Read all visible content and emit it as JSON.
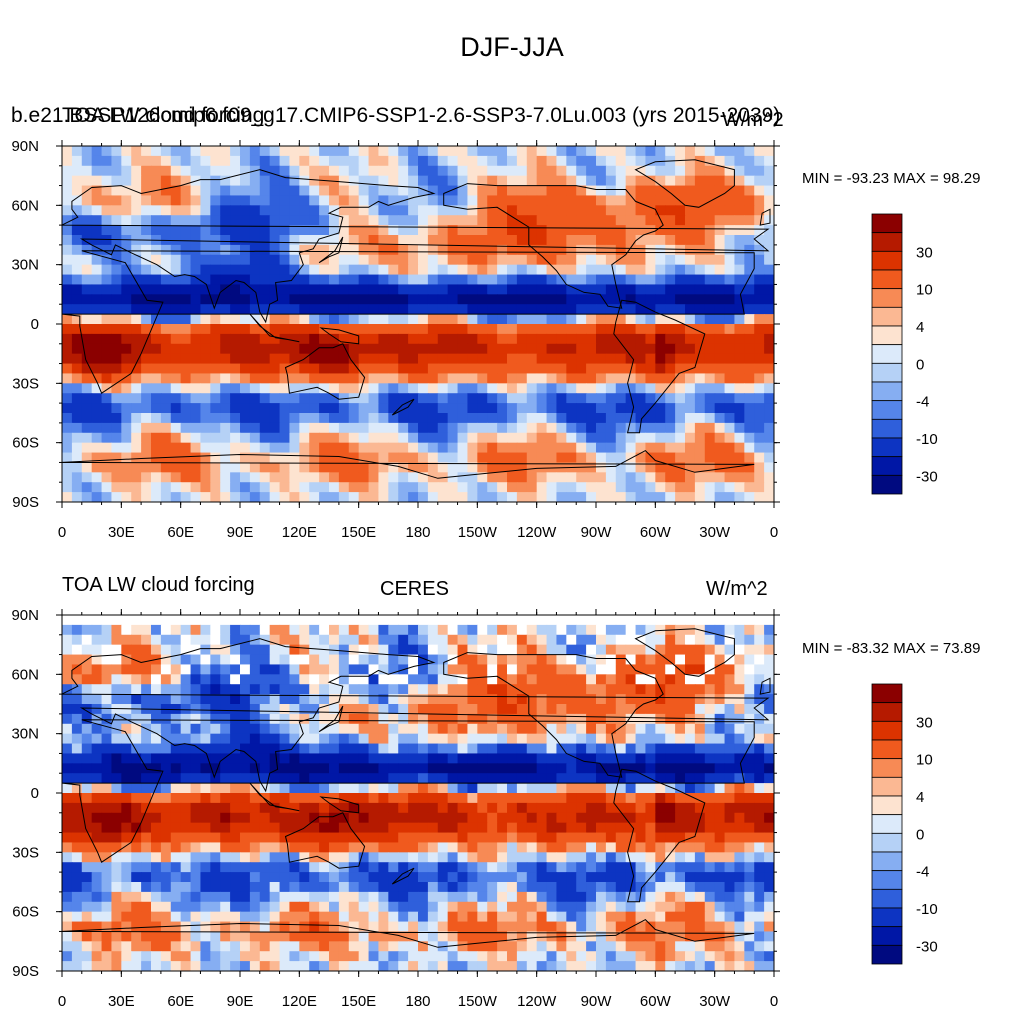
{
  "figure_title": "DJF-JJA",
  "colorbar_levels": [
    "30",
    "10",
    "4",
    "0",
    "-4",
    "-10",
    "-30"
  ],
  "colorbar_colors": [
    "#8b0000",
    "#b51a00",
    "#dc3300",
    "#f05a1e",
    "#f78a55",
    "#fbb893",
    "#fde3d0",
    "#dceafa",
    "#b5d1f6",
    "#86aef2",
    "#5585ea",
    "#2f5fdb",
    "#0d34c2",
    "#0017a6",
    "#000a80"
  ],
  "land_color": "#000000",
  "chart_data": [
    {
      "type": "heatmap",
      "title_left": "b.e21.BSSP126cmip6.f09_g17.CMIP6-SSP1-2.6-SSP3-7.0Lu.003 (yrs 2015-2039)",
      "title_left_overlay": "TOA LW cloud forcing",
      "title_center": "",
      "title_right": "W/m^2",
      "stats": "MIN = -93.23 MAX =  98.29",
      "x_ticks": [
        "0",
        "30E",
        "60E",
        "90E",
        "120E",
        "150E",
        "180",
        "150W",
        "120W",
        "90W",
        "60W",
        "30W",
        "0"
      ],
      "y_ticks": [
        "90N",
        "60N",
        "30N",
        "0",
        "30S",
        "60S",
        "90S"
      ],
      "xlim": [
        0,
        360
      ],
      "ylim": [
        -90,
        90
      ],
      "colorbar_ticks": [
        "30",
        "10",
        "4",
        "0",
        "-4",
        "-10",
        "-30"
      ],
      "missing_data": false
    },
    {
      "type": "heatmap",
      "title_left": "TOA LW cloud forcing",
      "title_left_overlay": "",
      "title_center": "CERES",
      "title_right": "W/m^2",
      "stats": "MIN = -83.32 MAX =  73.89",
      "x_ticks": [
        "0",
        "30E",
        "60E",
        "90E",
        "120E",
        "150E",
        "180",
        "150W",
        "120W",
        "90W",
        "60W",
        "30W",
        "0"
      ],
      "y_ticks": [
        "90N",
        "60N",
        "30N",
        "0",
        "30S",
        "60S",
        "90S"
      ],
      "xlim": [
        0,
        360
      ],
      "ylim": [
        -90,
        90
      ],
      "colorbar_ticks": [
        "30",
        "10",
        "4",
        "0",
        "-4",
        "-10",
        "-30"
      ],
      "missing_data": true
    }
  ]
}
